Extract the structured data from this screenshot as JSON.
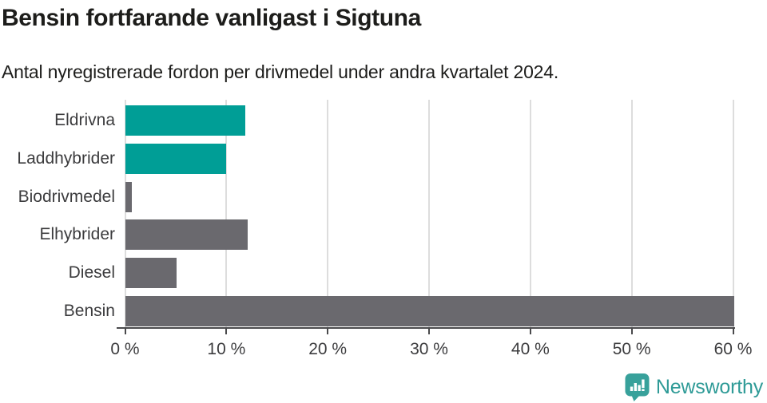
{
  "header": {
    "title": "Bensin fortfarande vanligast i Sigtuna",
    "subtitle": "Antal nyregistrerade fordon per drivmedel under andra kvartalet 2024."
  },
  "chart_data": {
    "type": "bar",
    "orientation": "horizontal",
    "title": "Bensin fortfarande vanligast i Sigtuna",
    "subtitle": "Antal nyregistrerade fordon per drivmedel under andra kvartalet 2024.",
    "categories": [
      "Eldrivna",
      "Laddhybrider",
      "Biodrivmedel",
      "Elhybrider",
      "Diesel",
      "Bensin"
    ],
    "values": [
      11.9,
      10.0,
      0.7,
      12.1,
      5.1,
      60.1
    ],
    "unit": "%",
    "bar_colors": [
      "#009e96",
      "#009e96",
      "#6a696e",
      "#6a696e",
      "#6a696e",
      "#6a696e"
    ],
    "xlabel": "",
    "ylabel": "",
    "xlim": [
      0,
      60
    ],
    "x_ticks": [
      0,
      10,
      20,
      30,
      40,
      50,
      60
    ],
    "x_tick_labels": [
      "0 %",
      "10 %",
      "20 %",
      "30 %",
      "40 %",
      "50 %",
      "60 %"
    ],
    "grid": "vertical-only",
    "legend": "none"
  },
  "branding": {
    "logo_text": "Newsworthy",
    "logo_icon": "speech-bubble-bar-chart-icon",
    "logo_color": "#2f9b97",
    "icon_color": "#38a19b"
  },
  "colors": {
    "background": "#ffffff",
    "accent_teal": "#009e96",
    "bar_gray": "#6a696e",
    "grid": "#dddddd",
    "axis": "#4a4a4c",
    "title_text": "#1d1d1b",
    "label_text": "#3c3c3e"
  }
}
